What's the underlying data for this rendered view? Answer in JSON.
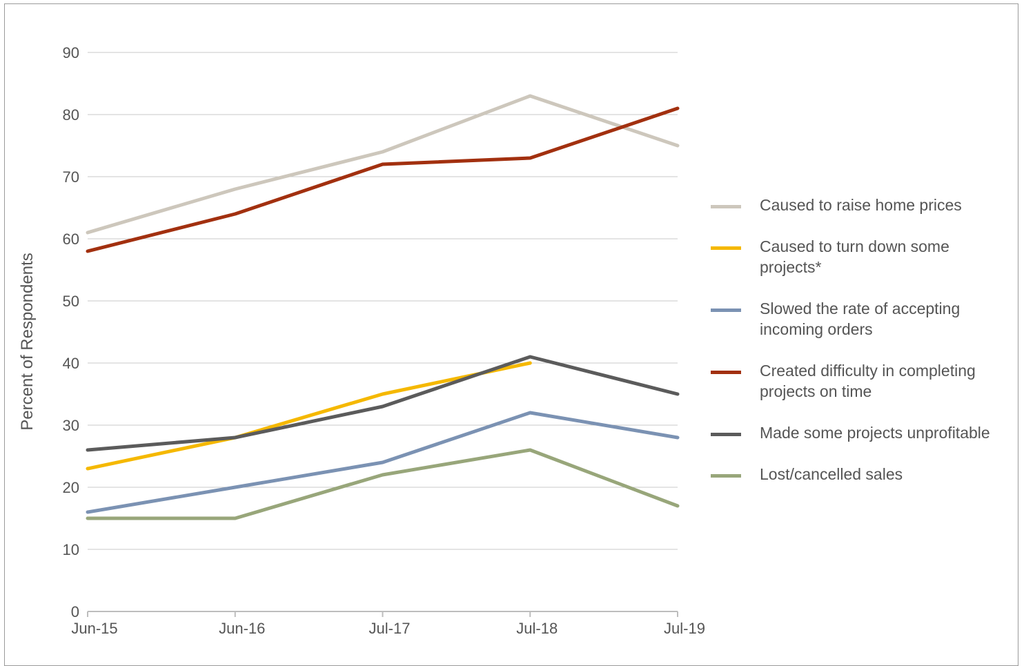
{
  "chart_data": {
    "type": "line",
    "title": "",
    "xlabel": "",
    "ylabel": "Percent of Respondents",
    "categories": [
      "Jun-15",
      "Jun-16",
      "Jul-17",
      "Jul-18",
      "Jul-19"
    ],
    "yticks": [
      "0",
      "10",
      "20",
      "30",
      "40",
      "50",
      "60",
      "70",
      "80",
      "90"
    ],
    "ylim": [
      0,
      90
    ],
    "grid": "horizontal",
    "legend_position": "right",
    "series": [
      {
        "name": "Caused to raise home prices",
        "color": "#cdc7bc",
        "values": [
          61,
          68,
          74,
          83,
          75
        ]
      },
      {
        "name": "Caused to turn down some projects*",
        "color": "#f5b800",
        "values": [
          23,
          28,
          35,
          40,
          null
        ]
      },
      {
        "name": "Slowed the rate of accepting incoming orders",
        "color": "#7b92b3",
        "values": [
          16,
          20,
          24,
          32,
          28
        ]
      },
      {
        "name": "Created difficulty in completing projects on time",
        "color": "#a2300f",
        "values": [
          58,
          64,
          72,
          73,
          81
        ]
      },
      {
        "name": "Made some projects unprofitable",
        "color": "#5b5b5b",
        "values": [
          26,
          28,
          33,
          41,
          35
        ]
      },
      {
        "name": "Lost/cancelled sales",
        "color": "#98a67a",
        "values": [
          15,
          15,
          22,
          26,
          17
        ]
      }
    ]
  }
}
